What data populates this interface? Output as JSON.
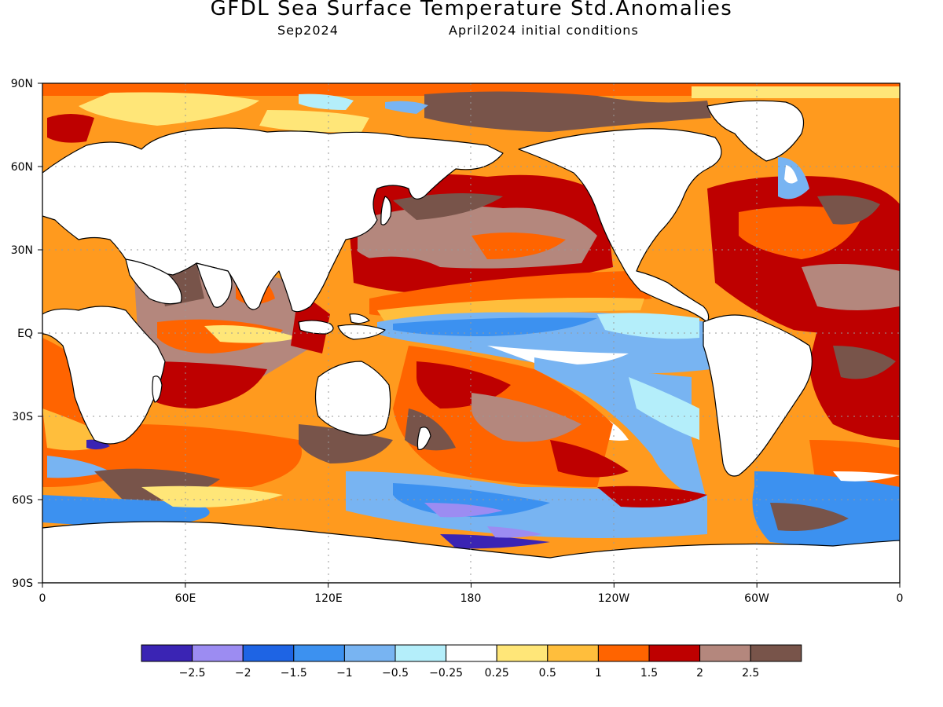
{
  "title": "GFDL Sea Surface Temperature Std.Anomalies",
  "subtitle_left": "Sep2024",
  "subtitle_right": "April2024 initial conditions",
  "lat_labels": [
    "90N",
    "60N",
    "30N",
    "EQ",
    "30S",
    "60S",
    "90S"
  ],
  "lon_labels": [
    "0",
    "60E",
    "120E",
    "180",
    "120W",
    "60W",
    "0"
  ],
  "legend": {
    "labels": [
      "-2.5",
      "-2",
      "-1.5",
      "-1",
      "-0.5",
      "-0.25",
      "0.25",
      "0.5",
      "1",
      "1.5",
      "2",
      "2.5"
    ],
    "colors": [
      "#3a24b4",
      "#9c8cf2",
      "#1e64e4",
      "#3c91f0",
      "#78b4f2",
      "#b4eefa",
      "#ffffff",
      "#ffe678",
      "#ffbe3c",
      "#ff6400",
      "#be0000",
      "#b4877d",
      "#78544a"
    ]
  },
  "map_colors": {
    "ocean_base": "#ff9a1e",
    "land": "#ffffff",
    "coast": "#000000",
    "grid": "#999999"
  }
}
